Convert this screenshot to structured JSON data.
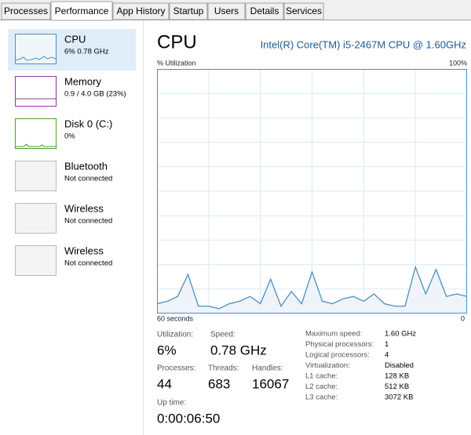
{
  "tabs": [
    "Processes",
    "Performance",
    "App History",
    "Startup",
    "Users",
    "Details",
    "Services"
  ],
  "sidebar": [
    {
      "name": "CPU",
      "detail": "6% 0.78 GHz"
    },
    {
      "name": "Memory",
      "detail": "0.9 / 4.0 GB (23%)"
    },
    {
      "name": "Disk 0 (C:)",
      "detail": "0%"
    },
    {
      "name": "Bluetooth",
      "detail": "Not connected"
    },
    {
      "name": "Wireless",
      "detail": "Not connected"
    },
    {
      "name": "Wireless",
      "detail": "Not connected"
    }
  ],
  "header": {
    "title": "CPU",
    "model": "Intel(R) Core(TM) i5-2467M CPU @ 1.60GHz"
  },
  "chart_data": {
    "type": "line",
    "ylabel": "% Utilization",
    "y_max_label": "100%",
    "x_start_label": "60 seconds",
    "x_end_label": "0",
    "xlim": [
      60,
      0
    ],
    "ylim": [
      0,
      100
    ],
    "color": "#4d8fbf",
    "fill": "#eef4fa",
    "x": [
      60,
      58,
      56,
      54,
      52,
      50,
      48,
      46,
      44,
      42,
      40,
      38,
      36,
      34,
      32,
      30,
      28,
      26,
      24,
      22,
      20,
      18,
      16,
      14,
      12,
      10,
      8,
      6,
      4,
      2,
      0
    ],
    "values": [
      4,
      5,
      7,
      16,
      3,
      3,
      2,
      4,
      5,
      7,
      4,
      14,
      3,
      9,
      4,
      17,
      5,
      4,
      6,
      7,
      5,
      8,
      4,
      3,
      3,
      19,
      8,
      18,
      7,
      8,
      7
    ]
  },
  "stats": {
    "utilization": {
      "label": "Utilization:",
      "value": "6%"
    },
    "speed": {
      "label": "Speed:",
      "value": "0.78 GHz"
    },
    "processes": {
      "label": "Processes:",
      "value": "44"
    },
    "threads": {
      "label": "Threads:",
      "value": "683"
    },
    "handles": {
      "label": "Handles:",
      "value": "16067"
    },
    "uptime": {
      "label": "Up time:",
      "value": "0:00:06:50"
    }
  },
  "details": [
    [
      "Maximum speed:",
      "1.60 GHz"
    ],
    [
      "Physical processors:",
      "1"
    ],
    [
      "Logical processors:",
      "4"
    ],
    [
      "Virtualization:",
      "Disabled"
    ],
    [
      "L1 cache:",
      "128 KB"
    ],
    [
      "L2 cache:",
      "512 KB"
    ],
    [
      "L3 cache:",
      "3072 KB"
    ]
  ]
}
